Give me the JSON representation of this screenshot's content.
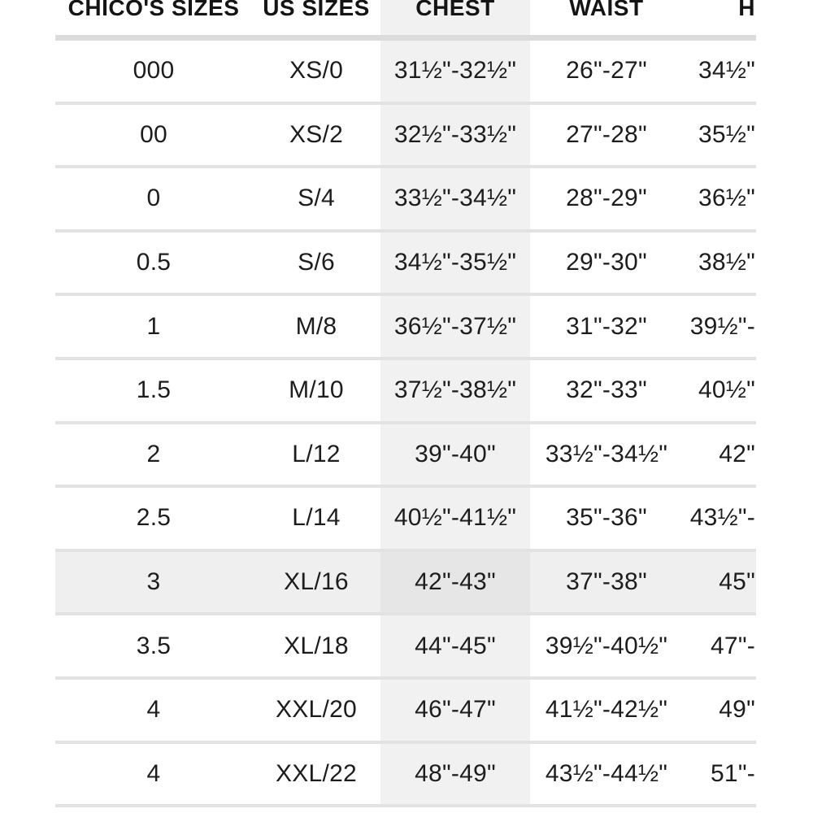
{
  "table": {
    "columns": [
      {
        "id": "chicos_sizes",
        "label": "CHICO'S SIZES"
      },
      {
        "id": "us_sizes",
        "label": "US SIZES"
      },
      {
        "id": "chest",
        "label": "CHEST",
        "shaded": true
      },
      {
        "id": "waist",
        "label": "WAIST"
      },
      {
        "id": "hips",
        "label": "H",
        "clipped": true
      }
    ],
    "rows": [
      {
        "chicos_sizes": "000",
        "us_sizes": "XS/0",
        "chest": "31½\"-32½\"",
        "waist": "26\"-27\"",
        "hips": "34½\"",
        "highlighted": false
      },
      {
        "chicos_sizes": "00",
        "us_sizes": "XS/2",
        "chest": "32½\"-33½\"",
        "waist": "27\"-28\"",
        "hips": "35½\"",
        "highlighted": false
      },
      {
        "chicos_sizes": "0",
        "us_sizes": "S/4",
        "chest": "33½\"-34½\"",
        "waist": "28\"-29\"",
        "hips": "36½\"",
        "highlighted": false
      },
      {
        "chicos_sizes": "0.5",
        "us_sizes": "S/6",
        "chest": "34½\"-35½\"",
        "waist": "29\"-30\"",
        "hips": "38½\"",
        "highlighted": false
      },
      {
        "chicos_sizes": "1",
        "us_sizes": "M/8",
        "chest": "36½\"-37½\"",
        "waist": "31\"-32\"",
        "hips": "39½\"-",
        "highlighted": false
      },
      {
        "chicos_sizes": "1.5",
        "us_sizes": "M/10",
        "chest": "37½\"-38½\"",
        "waist": "32\"-33\"",
        "hips": "40½\"",
        "highlighted": false
      },
      {
        "chicos_sizes": "2",
        "us_sizes": "L/12",
        "chest": "39\"-40\"",
        "waist": "33½\"-34½\"",
        "hips": "42\"",
        "highlighted": false
      },
      {
        "chicos_sizes": "2.5",
        "us_sizes": "L/14",
        "chest": "40½\"-41½\"",
        "waist": "35\"-36\"",
        "hips": "43½\"-",
        "highlighted": false
      },
      {
        "chicos_sizes": "3",
        "us_sizes": "XL/16",
        "chest": "42\"-43\"",
        "waist": "37\"-38\"",
        "hips": "45\"",
        "highlighted": true
      },
      {
        "chicos_sizes": "3.5",
        "us_sizes": "XL/18",
        "chest": "44\"-45\"",
        "waist": "39½\"-40½\"",
        "hips": "47\"-",
        "highlighted": false
      },
      {
        "chicos_sizes": "4",
        "us_sizes": "XXL/20",
        "chest": "46\"-47\"",
        "waist": "41½\"-42½\"",
        "hips": "49\"",
        "highlighted": false
      },
      {
        "chicos_sizes": "4",
        "us_sizes": "XXL/22",
        "chest": "48\"-49\"",
        "waist": "43½\"-44½\"",
        "hips": "51\"-",
        "highlighted": false
      }
    ],
    "highlighted_row_index": 8,
    "colors": {
      "text": "#1d1d1d",
      "chest_column_bg": "#f1f1f1",
      "highlight_row_bg": "#f0efef",
      "highlight_chest_bg": "#e7e6e6",
      "row_divider": "#e2e2e2",
      "header_divider": "#dcdcdc"
    }
  }
}
